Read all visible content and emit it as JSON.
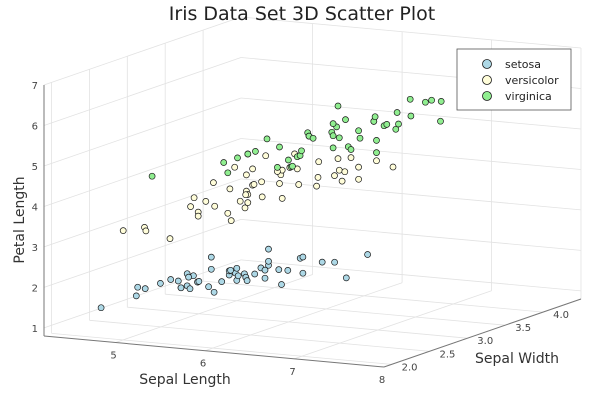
{
  "colors": {
    "setosa": "#add8e6",
    "versicolor": "#fffdd9",
    "virginica": "#90ee90",
    "marker_edge": "#1a1a1a",
    "grid": "#e2e2e2",
    "axis": "#777777"
  },
  "chart_data": {
    "type": "scatter",
    "projection": "3d",
    "title": "Iris Data Set 3D Scatter Plot",
    "xlabel": "Sepal Length",
    "ylabel": "Sepal Width",
    "zlabel": "Petal Length",
    "xlim": [
      4.2,
      8.0
    ],
    "ylim": [
      1.9,
      4.5
    ],
    "zlim": [
      0.8,
      7.0
    ],
    "xticks": [
      "5",
      "6",
      "7",
      "8"
    ],
    "yticks": [
      "2.0",
      "2.5",
      "3.0",
      "3.5",
      "4.0"
    ],
    "zticks": [
      "1",
      "2",
      "3",
      "4",
      "5",
      "6",
      "7"
    ],
    "grid": true,
    "legend_position": "top-right",
    "series": [
      {
        "name": "setosa",
        "points": [
          [
            5.1,
            3.5,
            1.4
          ],
          [
            4.9,
            3.0,
            1.4
          ],
          [
            4.7,
            3.2,
            1.3
          ],
          [
            4.6,
            3.1,
            1.5
          ],
          [
            5.0,
            3.6,
            1.4
          ],
          [
            5.4,
            3.9,
            1.7
          ],
          [
            4.6,
            3.4,
            1.4
          ],
          [
            5.0,
            3.4,
            1.5
          ],
          [
            4.4,
            2.9,
            1.4
          ],
          [
            4.9,
            3.1,
            1.5
          ],
          [
            5.4,
            3.7,
            1.5
          ],
          [
            4.8,
            3.4,
            1.6
          ],
          [
            4.8,
            3.0,
            1.4
          ],
          [
            4.3,
            3.0,
            1.1
          ],
          [
            5.8,
            4.0,
            1.2
          ],
          [
            5.7,
            4.4,
            1.5
          ],
          [
            5.4,
            3.9,
            1.3
          ],
          [
            5.1,
            3.5,
            1.4
          ],
          [
            5.7,
            3.8,
            1.7
          ],
          [
            5.1,
            3.8,
            1.5
          ],
          [
            5.4,
            3.4,
            1.7
          ],
          [
            5.1,
            3.7,
            1.5
          ],
          [
            4.6,
            3.6,
            1.0
          ],
          [
            5.1,
            3.3,
            1.7
          ],
          [
            4.8,
            3.4,
            1.9
          ],
          [
            5.0,
            3.0,
            1.6
          ],
          [
            5.0,
            3.4,
            1.6
          ],
          [
            5.2,
            3.5,
            1.5
          ],
          [
            5.2,
            3.4,
            1.4
          ],
          [
            4.7,
            3.2,
            1.6
          ],
          [
            4.8,
            3.1,
            1.6
          ],
          [
            5.4,
            3.4,
            1.5
          ],
          [
            5.2,
            4.1,
            1.5
          ],
          [
            5.5,
            4.2,
            1.4
          ],
          [
            4.9,
            3.1,
            1.5
          ],
          [
            5.0,
            3.2,
            1.2
          ],
          [
            5.5,
            3.5,
            1.3
          ],
          [
            4.9,
            3.6,
            1.4
          ],
          [
            4.4,
            3.0,
            1.3
          ],
          [
            5.1,
            3.4,
            1.5
          ],
          [
            5.0,
            3.5,
            1.3
          ],
          [
            4.5,
            2.3,
            1.3
          ],
          [
            4.4,
            3.2,
            1.3
          ],
          [
            5.0,
            3.5,
            1.6
          ],
          [
            5.1,
            3.8,
            1.9
          ],
          [
            4.8,
            3.0,
            1.4
          ],
          [
            5.1,
            3.8,
            1.6
          ],
          [
            4.6,
            3.2,
            1.4
          ],
          [
            5.3,
            3.7,
            1.5
          ],
          [
            5.0,
            3.3,
            1.4
          ]
        ]
      },
      {
        "name": "versicolor",
        "points": [
          [
            7.0,
            3.2,
            4.7
          ],
          [
            6.4,
            3.2,
            4.5
          ],
          [
            6.9,
            3.1,
            4.9
          ],
          [
            5.5,
            2.3,
            4.0
          ],
          [
            6.5,
            2.8,
            4.6
          ],
          [
            5.7,
            2.8,
            4.5
          ],
          [
            6.3,
            3.3,
            4.7
          ],
          [
            4.9,
            2.4,
            3.3
          ],
          [
            6.6,
            2.9,
            4.6
          ],
          [
            5.2,
            2.7,
            3.9
          ],
          [
            5.0,
            2.0,
            3.5
          ],
          [
            5.9,
            3.0,
            4.2
          ],
          [
            6.0,
            2.2,
            4.0
          ],
          [
            6.1,
            2.9,
            4.7
          ],
          [
            5.6,
            2.9,
            3.6
          ],
          [
            6.7,
            3.1,
            4.4
          ],
          [
            5.6,
            3.0,
            4.5
          ],
          [
            5.8,
            2.7,
            4.1
          ],
          [
            6.2,
            2.2,
            4.5
          ],
          [
            5.6,
            2.5,
            3.9
          ],
          [
            5.9,
            3.2,
            4.8
          ],
          [
            6.1,
            2.8,
            4.0
          ],
          [
            6.3,
            2.5,
            4.9
          ],
          [
            6.1,
            2.8,
            4.7
          ],
          [
            6.4,
            2.9,
            4.3
          ],
          [
            6.6,
            3.0,
            4.4
          ],
          [
            6.8,
            2.8,
            4.8
          ],
          [
            6.7,
            3.0,
            5.0
          ],
          [
            6.0,
            2.9,
            4.5
          ],
          [
            5.7,
            2.6,
            3.5
          ],
          [
            5.5,
            2.4,
            3.8
          ],
          [
            5.5,
            2.4,
            3.7
          ],
          [
            5.8,
            2.7,
            3.9
          ],
          [
            6.0,
            2.7,
            5.1
          ],
          [
            5.4,
            3.0,
            4.5
          ],
          [
            6.0,
            3.4,
            4.5
          ],
          [
            6.7,
            3.1,
            4.7
          ],
          [
            6.3,
            2.3,
            4.4
          ],
          [
            5.6,
            3.0,
            4.1
          ],
          [
            5.5,
            2.5,
            4.0
          ],
          [
            5.5,
            2.6,
            4.4
          ],
          [
            6.1,
            3.0,
            4.6
          ],
          [
            5.8,
            2.6,
            4.0
          ],
          [
            5.0,
            2.3,
            3.3
          ],
          [
            5.6,
            2.7,
            4.2
          ],
          [
            5.7,
            3.0,
            4.2
          ],
          [
            5.7,
            2.9,
            4.2
          ],
          [
            6.2,
            2.9,
            4.3
          ],
          [
            5.1,
            2.5,
            3.0
          ],
          [
            5.7,
            2.8,
            4.1
          ]
        ]
      },
      {
        "name": "virginica",
        "points": [
          [
            6.3,
            3.3,
            6.0
          ],
          [
            5.8,
            2.7,
            5.1
          ],
          [
            7.1,
            3.0,
            5.9
          ],
          [
            6.3,
            2.9,
            5.6
          ],
          [
            6.5,
            3.0,
            5.8
          ],
          [
            7.6,
            3.0,
            6.6
          ],
          [
            4.9,
            2.5,
            4.5
          ],
          [
            7.3,
            2.9,
            6.3
          ],
          [
            6.7,
            2.5,
            5.8
          ],
          [
            7.2,
            3.6,
            6.1
          ],
          [
            6.5,
            3.2,
            5.1
          ],
          [
            6.4,
            2.7,
            5.3
          ],
          [
            6.8,
            3.0,
            5.5
          ],
          [
            5.7,
            2.5,
            5.0
          ],
          [
            5.8,
            2.8,
            5.1
          ],
          [
            6.4,
            3.2,
            5.3
          ],
          [
            6.5,
            3.0,
            5.5
          ],
          [
            7.7,
            3.8,
            6.7
          ],
          [
            7.7,
            2.6,
            6.9
          ],
          [
            6.0,
            2.2,
            5.0
          ],
          [
            6.9,
            3.2,
            5.7
          ],
          [
            5.6,
            2.8,
            4.9
          ],
          [
            7.7,
            2.8,
            6.7
          ],
          [
            6.3,
            2.7,
            4.9
          ],
          [
            6.7,
            3.3,
            5.7
          ],
          [
            7.2,
            3.2,
            6.0
          ],
          [
            6.2,
            2.8,
            4.8
          ],
          [
            6.1,
            3.0,
            4.9
          ],
          [
            6.4,
            2.8,
            5.6
          ],
          [
            7.2,
            3.0,
            5.8
          ],
          [
            7.4,
            2.8,
            6.1
          ],
          [
            7.9,
            3.8,
            6.4
          ],
          [
            6.4,
            2.8,
            5.6
          ],
          [
            6.3,
            2.8,
            5.1
          ],
          [
            6.1,
            2.6,
            5.6
          ],
          [
            7.7,
            3.0,
            6.1
          ],
          [
            6.3,
            3.4,
            5.6
          ],
          [
            6.4,
            3.1,
            5.5
          ],
          [
            6.0,
            3.0,
            4.8
          ],
          [
            6.9,
            3.1,
            5.4
          ],
          [
            6.7,
            3.1,
            5.6
          ],
          [
            6.9,
            3.1,
            5.1
          ],
          [
            5.8,
            2.7,
            5.1
          ],
          [
            6.8,
            3.2,
            5.9
          ],
          [
            6.7,
            3.3,
            5.7
          ],
          [
            6.7,
            3.0,
            5.2
          ],
          [
            6.3,
            2.5,
            5.0
          ],
          [
            6.5,
            3.0,
            5.2
          ],
          [
            6.2,
            3.4,
            5.4
          ],
          [
            5.9,
            3.0,
            5.1
          ]
        ]
      }
    ]
  }
}
